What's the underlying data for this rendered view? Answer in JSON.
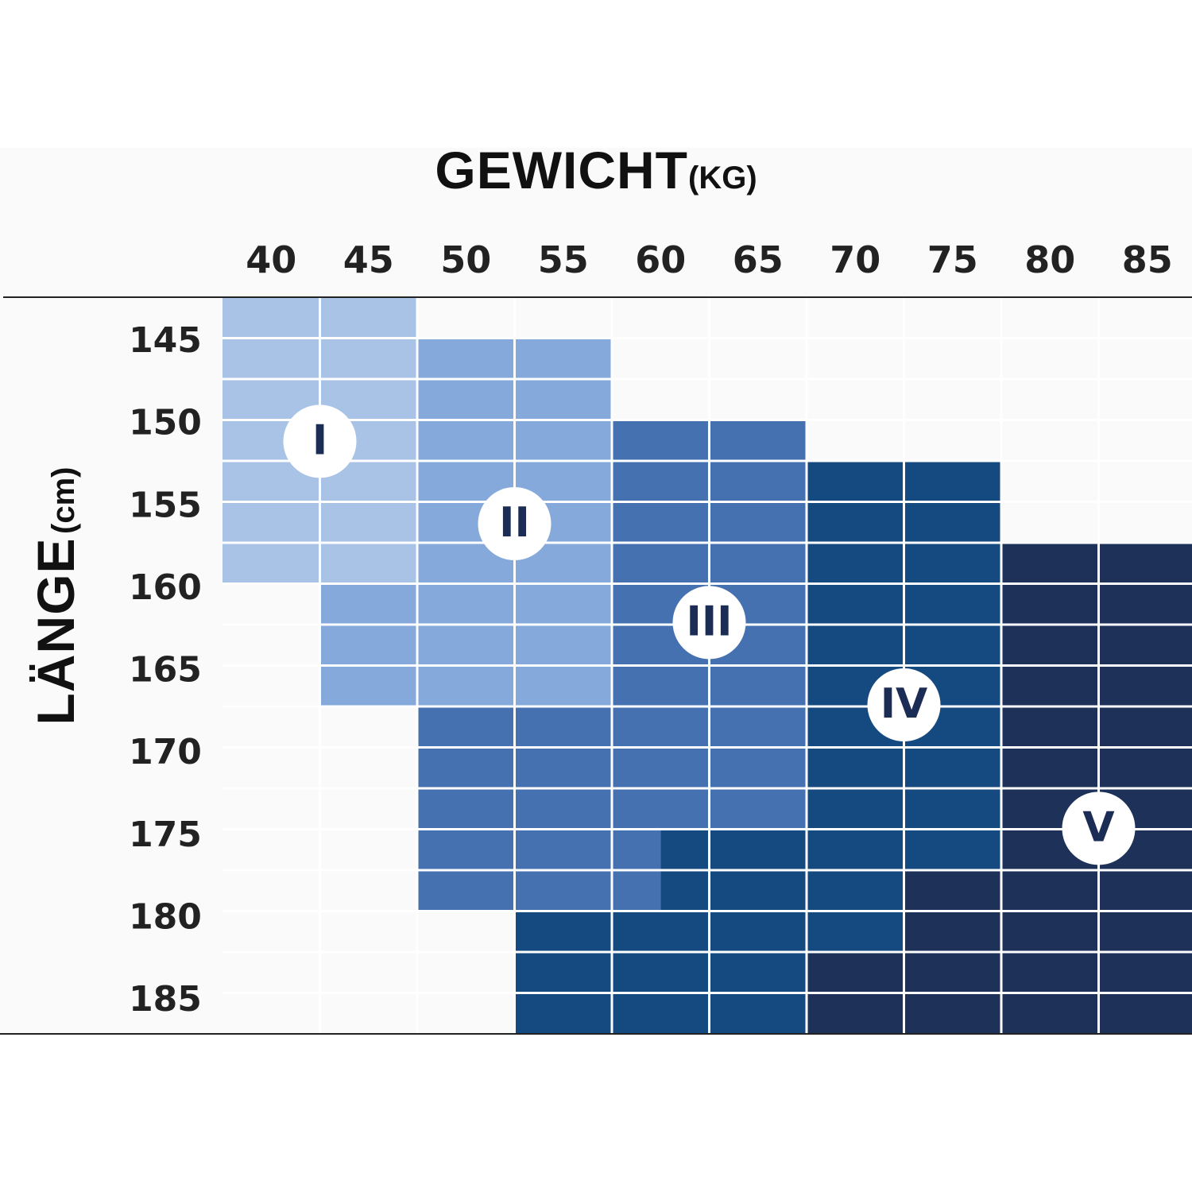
{
  "chart_data": {
    "type": "heatmap",
    "title": "GEWICHT",
    "title_unit": "(KG)",
    "xlabel": "GEWICHT",
    "xlabel_unit": "(KG)",
    "ylabel": "LÄNGE",
    "ylabel_unit": "(cm)",
    "x_ticks": [
      "40",
      "45",
      "50",
      "55",
      "60",
      "65",
      "70",
      "75",
      "80",
      "85"
    ],
    "y_ticks": [
      "145",
      "150",
      "155",
      "160",
      "165",
      "170",
      "175",
      "180",
      "185"
    ],
    "grid": true,
    "size_labels": [
      "I",
      "II",
      "III",
      "IV",
      "V"
    ],
    "label_positions": {
      "I": {
        "x": 42.5,
        "y": 151
      },
      "II": {
        "x": 52.5,
        "y": 156
      },
      "III": {
        "x": 62.5,
        "y": 162
      },
      "IV": {
        "x": 72.5,
        "y": 167
      },
      "V": {
        "x": 82.5,
        "y": 174.5
      }
    },
    "colors": {
      "I": "#a9c3e6",
      "II": "#86a9db",
      "III": "#4571b0",
      "IV": "#154a80",
      "V": "#1d3159"
    },
    "cells": [
      [
        "I",
        "I",
        null,
        null,
        null,
        null,
        null,
        null,
        null,
        null
      ],
      [
        "I",
        "I",
        "II",
        "II",
        null,
        null,
        null,
        null,
        null,
        null
      ],
      [
        "I",
        "I",
        "II",
        "II",
        null,
        null,
        null,
        null,
        null,
        null
      ],
      [
        "I",
        "I",
        "II",
        "II",
        "III",
        "III",
        null,
        null,
        null,
        null
      ],
      [
        "I",
        "I",
        "II",
        "II",
        "III",
        "III",
        "IV",
        "IV",
        null,
        null
      ],
      [
        "I",
        "I",
        "II",
        "II",
        "III",
        "III",
        "IV",
        "IV",
        null,
        null
      ],
      [
        "I",
        "I",
        "II",
        "II",
        "III",
        "III",
        "IV",
        "IV",
        "V",
        "V"
      ],
      [
        null,
        "II",
        "II",
        "II",
        "III",
        "III",
        "IV",
        "IV",
        "V",
        "V"
      ],
      [
        null,
        "II",
        "II",
        "II",
        "III",
        "III",
        "IV",
        "IV",
        "V",
        "V"
      ],
      [
        null,
        "II",
        "II",
        "II",
        "III",
        "III",
        "IV",
        "IV",
        "V",
        "V"
      ],
      [
        null,
        null,
        "III",
        "III",
        "III",
        "III",
        "IV",
        "IV",
        "V",
        "V"
      ],
      [
        null,
        null,
        "III",
        "III",
        "III",
        "III",
        "IV",
        "IV",
        "V",
        "V"
      ],
      [
        null,
        null,
        "III",
        "III",
        "III",
        "III",
        "IV",
        "IV",
        "V",
        "V"
      ],
      [
        null,
        null,
        "III",
        "III",
        "III+IV",
        "IV",
        "IV",
        "IV",
        "V",
        "V"
      ],
      [
        null,
        null,
        "III",
        "III",
        "III+IV",
        "IV",
        "IV",
        "V",
        "V",
        "V"
      ],
      [
        null,
        null,
        null,
        "IV",
        "IV",
        "IV",
        "IV",
        "V",
        "V",
        "V"
      ],
      [
        null,
        null,
        null,
        "IV",
        "IV",
        "IV",
        "V",
        "V",
        "V",
        "V"
      ],
      [
        null,
        null,
        null,
        "IV",
        "IV",
        "IV",
        "V",
        "V",
        "V",
        "V"
      ]
    ]
  }
}
